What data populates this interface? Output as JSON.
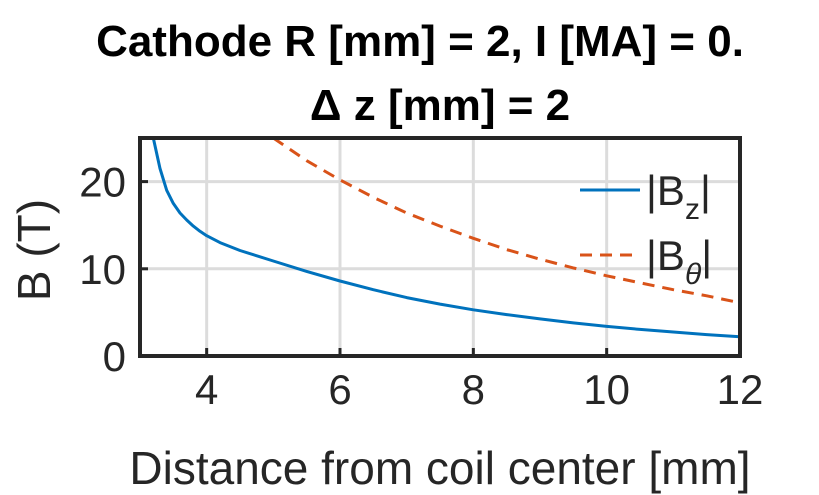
{
  "chart_data": {
    "type": "line",
    "title": [
      "Cathode R [mm] = 2, I [MA] = 0.",
      "Δ z [mm] = 2"
    ],
    "xlabel": "Distance from coil center [mm]",
    "ylabel": "B (T)",
    "xlim": [
      3,
      12
    ],
    "ylim": [
      0,
      25
    ],
    "xticks": [
      4,
      6,
      8,
      10,
      12
    ],
    "yticks": [
      0,
      10,
      20
    ],
    "grid": true,
    "legend_position": "right",
    "series": [
      {
        "name": "|B_z|",
        "label_main": "|B",
        "label_sub": "z",
        "label_end": "|",
        "color": "#0072BD",
        "style": "solid",
        "x": [
          3.2,
          3.3,
          3.4,
          3.5,
          3.6,
          3.7,
          3.8,
          3.9,
          4.0,
          4.2,
          4.5,
          5.0,
          5.5,
          6.0,
          6.5,
          7.0,
          7.5,
          8.0,
          8.5,
          9.0,
          9.5,
          10.0,
          10.5,
          11.0,
          11.5,
          12.0
        ],
        "y": [
          25,
          21.5,
          19,
          17.5,
          16.4,
          15.6,
          14.9,
          14.3,
          13.8,
          13.0,
          12.1,
          10.9,
          9.7,
          8.6,
          7.6,
          6.7,
          5.95,
          5.3,
          4.75,
          4.25,
          3.8,
          3.4,
          3.05,
          2.75,
          2.45,
          2.2
        ]
      },
      {
        "name": "|B_θ|",
        "label_main": "|B",
        "label_sub": "θ",
        "label_end": "|",
        "color": "#D95319",
        "style": "dashed",
        "x": [
          5.0,
          5.5,
          6.0,
          6.5,
          7.0,
          7.5,
          8.0,
          8.5,
          9.0,
          9.5,
          10.0,
          10.5,
          11.0,
          11.5,
          12.0
        ],
        "y": [
          25,
          22.4,
          20.2,
          18.2,
          16.4,
          14.9,
          13.5,
          12.2,
          11.1,
          10.1,
          9.2,
          8.4,
          7.6,
          6.9,
          6.1
        ]
      }
    ]
  }
}
